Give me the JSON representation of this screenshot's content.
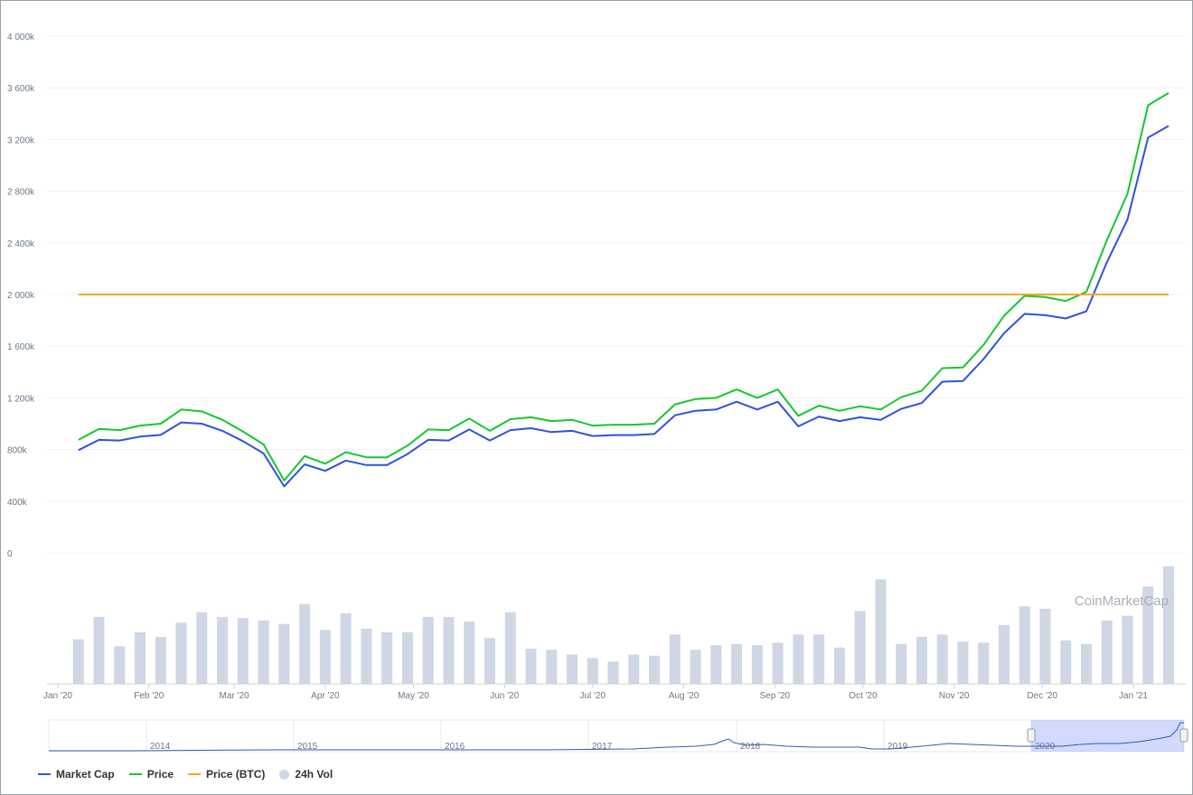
{
  "chart_data": {
    "type": "line",
    "watermark": "CoinMarketCap",
    "y_axis": {
      "min": 0,
      "max": 4000000,
      "ticks": [
        0,
        400000,
        800000,
        1200000,
        1600000,
        2000000,
        2400000,
        2800000,
        3200000,
        3600000,
        4000000
      ],
      "tick_labels": [
        "0",
        "400k",
        "800k",
        "1 200k",
        "1 600k",
        "2 000k",
        "2 400k",
        "2 800k",
        "3 200k",
        "3 600k",
        "4 000k"
      ]
    },
    "x_axis": {
      "tick_labels": [
        "Jan '20",
        "Feb '20",
        "Mar '20",
        "Apr '20",
        "May '20",
        "Jun '20",
        "Jul '20",
        "Aug '20",
        "Sep '20",
        "Oct '20",
        "Nov '20",
        "Dec '20",
        "Jan '21"
      ],
      "tick_dates": [
        "2020-01-01",
        "2020-02-01",
        "2020-03-01",
        "2020-04-01",
        "2020-05-01",
        "2020-06-01",
        "2020-07-01",
        "2020-08-01",
        "2020-09-01",
        "2020-10-01",
        "2020-11-01",
        "2020-12-01",
        "2021-01-01"
      ]
    },
    "dates": [
      "2020-01-08",
      "2020-01-15",
      "2020-01-22",
      "2020-01-29",
      "2020-02-05",
      "2020-02-12",
      "2020-02-19",
      "2020-02-26",
      "2020-03-04",
      "2020-03-11",
      "2020-03-18",
      "2020-03-25",
      "2020-04-01",
      "2020-04-08",
      "2020-04-15",
      "2020-04-22",
      "2020-04-29",
      "2020-05-06",
      "2020-05-13",
      "2020-05-20",
      "2020-05-27",
      "2020-06-03",
      "2020-06-10",
      "2020-06-17",
      "2020-06-24",
      "2020-07-01",
      "2020-07-08",
      "2020-07-15",
      "2020-07-22",
      "2020-07-29",
      "2020-08-05",
      "2020-08-12",
      "2020-08-19",
      "2020-08-26",
      "2020-09-02",
      "2020-09-09",
      "2020-09-16",
      "2020-09-23",
      "2020-09-30",
      "2020-10-07",
      "2020-10-14",
      "2020-10-21",
      "2020-10-28",
      "2020-11-04",
      "2020-11-11",
      "2020-11-18",
      "2020-11-25",
      "2020-12-02",
      "2020-12-09",
      "2020-12-16",
      "2020-12-23",
      "2020-12-30",
      "2021-01-06",
      "2021-01-13"
    ],
    "series": [
      {
        "name": "Market Cap",
        "color": "#2f51e0",
        "values": [
          795000,
          875000,
          870000,
          900000,
          913000,
          1010000,
          1000000,
          945000,
          865000,
          770000,
          515000,
          685000,
          635000,
          715000,
          680000,
          680000,
          765000,
          875000,
          870000,
          955000,
          870000,
          950000,
          965000,
          935000,
          945000,
          905000,
          912000,
          912000,
          920000,
          1065000,
          1100000,
          1110000,
          1170000,
          1110000,
          1170000,
          980000,
          1055000,
          1020000,
          1050000,
          1030000,
          1115000,
          1160000,
          1325000,
          1330000,
          1500000,
          1700000,
          1850000,
          1840000,
          1815000,
          1870000,
          2250000,
          2580000,
          3215000,
          3305000
        ]
      },
      {
        "name": "Price",
        "color": "#16c72e",
        "values": [
          875000,
          960000,
          950000,
          985000,
          1000000,
          1110000,
          1095000,
          1030000,
          940000,
          840000,
          560000,
          750000,
          690000,
          780000,
          740000,
          740000,
          830000,
          955000,
          950000,
          1040000,
          945000,
          1035000,
          1050000,
          1020000,
          1030000,
          985000,
          992000,
          992000,
          1000000,
          1150000,
          1190000,
          1200000,
          1265000,
          1200000,
          1265000,
          1060000,
          1140000,
          1100000,
          1135000,
          1110000,
          1205000,
          1255000,
          1430000,
          1435000,
          1610000,
          1835000,
          1990000,
          1980000,
          1950000,
          2020000,
          2420000,
          2780000,
          3465000,
          3560000
        ]
      },
      {
        "name": "Price (BTC)",
        "color": "#f5a623",
        "values": [
          2000000,
          2000000,
          2000000,
          2000000,
          2000000,
          2000000,
          2000000,
          2000000,
          2000000,
          2000000,
          2000000,
          2000000,
          2000000,
          2000000,
          2000000,
          2000000,
          2000000,
          2000000,
          2000000,
          2000000,
          2000000,
          2000000,
          2000000,
          2000000,
          2000000,
          2000000,
          2000000,
          2000000,
          2000000,
          2000000,
          2000000,
          2000000,
          2000000,
          2000000,
          2000000,
          2000000,
          2000000,
          2000000,
          2000000,
          2000000,
          2000000,
          2000000,
          2000000,
          2000000,
          2000000,
          2000000,
          2000000,
          2000000,
          2000000,
          2000000,
          2000000,
          2000000,
          2000000,
          2000000
        ]
      },
      {
        "name": "24h Vol",
        "color": "#cfd6e4",
        "type": "bar",
        "relative_values": [
          0.38,
          0.57,
          0.32,
          0.44,
          0.4,
          0.52,
          0.61,
          0.57,
          0.56,
          0.54,
          0.51,
          0.68,
          0.46,
          0.6,
          0.47,
          0.44,
          0.44,
          0.57,
          0.57,
          0.53,
          0.39,
          0.61,
          0.3,
          0.29,
          0.25,
          0.22,
          0.19,
          0.25,
          0.24,
          0.42,
          0.29,
          0.33,
          0.34,
          0.33,
          0.35,
          0.42,
          0.42,
          0.31,
          0.62,
          0.89,
          0.34,
          0.4,
          0.42,
          0.36,
          0.35,
          0.5,
          0.66,
          0.64,
          0.37,
          0.34,
          0.54,
          0.58,
          0.83,
          1.0
        ]
      }
    ],
    "navigator": {
      "year_labels": [
        "2014",
        "2015",
        "2016",
        "2017",
        "2018",
        "2019",
        "2020"
      ]
    },
    "legend": {
      "position": "bottom-left",
      "items": [
        {
          "label": "Market Cap",
          "color": "#2f51e0",
          "symbol": "line"
        },
        {
          "label": "Price",
          "color": "#16c72e",
          "symbol": "line"
        },
        {
          "label": "Price (BTC)",
          "color": "#f5a623",
          "symbol": "line"
        },
        {
          "label": "24h Vol",
          "color": "#cfd6e4",
          "symbol": "dot"
        }
      ]
    },
    "grid": true
  }
}
